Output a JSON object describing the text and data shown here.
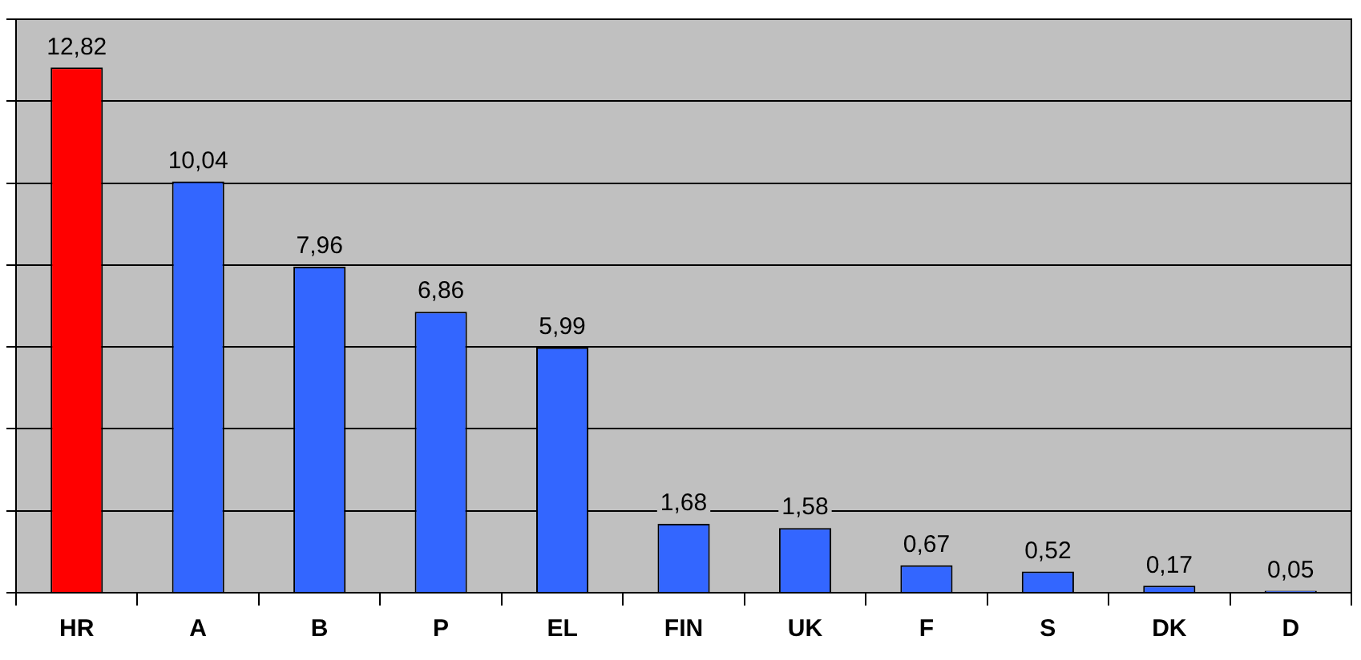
{
  "chart_data": {
    "type": "bar",
    "categories": [
      "HR",
      "A",
      "B",
      "P",
      "EL",
      "FIN",
      "UK",
      "F",
      "S",
      "DK",
      "D"
    ],
    "values": [
      12.82,
      10.04,
      7.96,
      6.86,
      5.99,
      1.68,
      1.58,
      0.67,
      0.52,
      0.17,
      0.05
    ],
    "colors": [
      "#ff0000",
      "#3366ff",
      "#3366ff",
      "#3366ff",
      "#3366ff",
      "#3366ff",
      "#3366ff",
      "#3366ff",
      "#3366ff",
      "#3366ff",
      "#3366ff"
    ],
    "value_labels": [
      "12,82",
      "10,04",
      "7,96",
      "6,86",
      "5,99",
      "1,68",
      "1,58",
      "0,67",
      "0,52",
      "0,17",
      "0,05"
    ],
    "ylim": [
      0,
      14
    ],
    "yticks": [
      {
        "value": 0,
        "label": null
      },
      {
        "value": 2,
        "label": null
      },
      {
        "value": 4,
        "label": null
      },
      {
        "value": 6,
        "label": null
      },
      {
        "value": 8,
        "label": null
      },
      {
        "value": 10,
        "label": null
      },
      {
        "value": 12,
        "label": null
      },
      {
        "value": 14,
        "label": null
      }
    ],
    "grid": "y",
    "tick_labels": "x",
    "legend": false
  }
}
